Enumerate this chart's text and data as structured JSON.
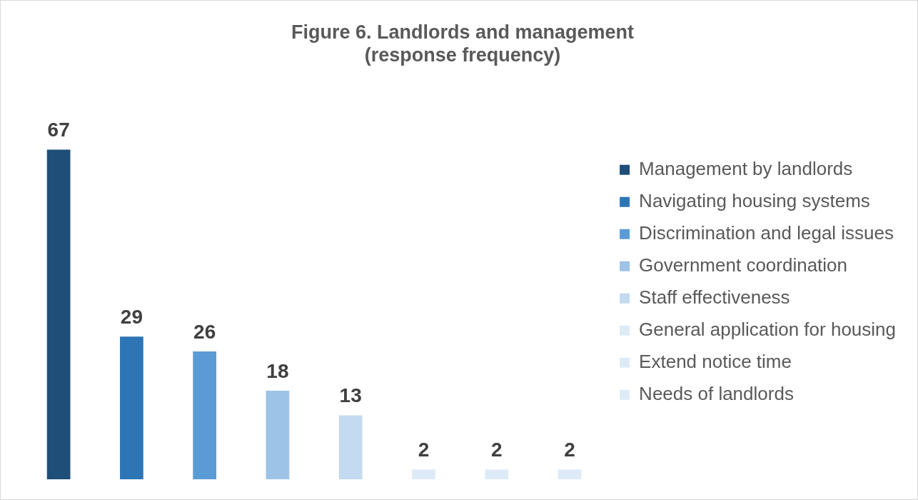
{
  "chart_data": {
    "type": "bar",
    "title": "Figure 6. Landlords and management\n(response frequency)",
    "categories": [
      null,
      null,
      null,
      null,
      null,
      null,
      null,
      null
    ],
    "series": [
      {
        "name": "Management by landlords",
        "color": "#1f4e79",
        "values": [
          67,
          null,
          null,
          null,
          null,
          null,
          null,
          null
        ]
      },
      {
        "name": "Navigating housing systems",
        "color": "#2e75b6",
        "values": [
          null,
          29,
          null,
          null,
          null,
          null,
          null,
          null
        ]
      },
      {
        "name": "Discrimination and legal issues",
        "color": "#5b9bd5",
        "values": [
          null,
          null,
          26,
          null,
          null,
          null,
          null,
          null
        ]
      },
      {
        "name": "Government coordination",
        "color": "#9dc3e6",
        "values": [
          null,
          null,
          null,
          18,
          null,
          null,
          null,
          null
        ]
      },
      {
        "name": "Staff effectiveness",
        "color": "#c3daf0",
        "values": [
          null,
          null,
          null,
          null,
          13,
          null,
          null,
          null
        ]
      },
      {
        "name": "General application for housing",
        "color": "#deebf7",
        "values": [
          null,
          null,
          null,
          null,
          null,
          2,
          null,
          null
        ]
      },
      {
        "name": "Extend notice time",
        "color": "#deebf7",
        "values": [
          null,
          null,
          null,
          null,
          null,
          null,
          2,
          null
        ]
      },
      {
        "name": "Needs of landlords",
        "color": "#deebf7",
        "values": [
          null,
          null,
          null,
          null,
          null,
          null,
          null,
          2
        ]
      }
    ],
    "stacked": true,
    "data_labels": true,
    "legend": "right",
    "tick_labels": false
  }
}
